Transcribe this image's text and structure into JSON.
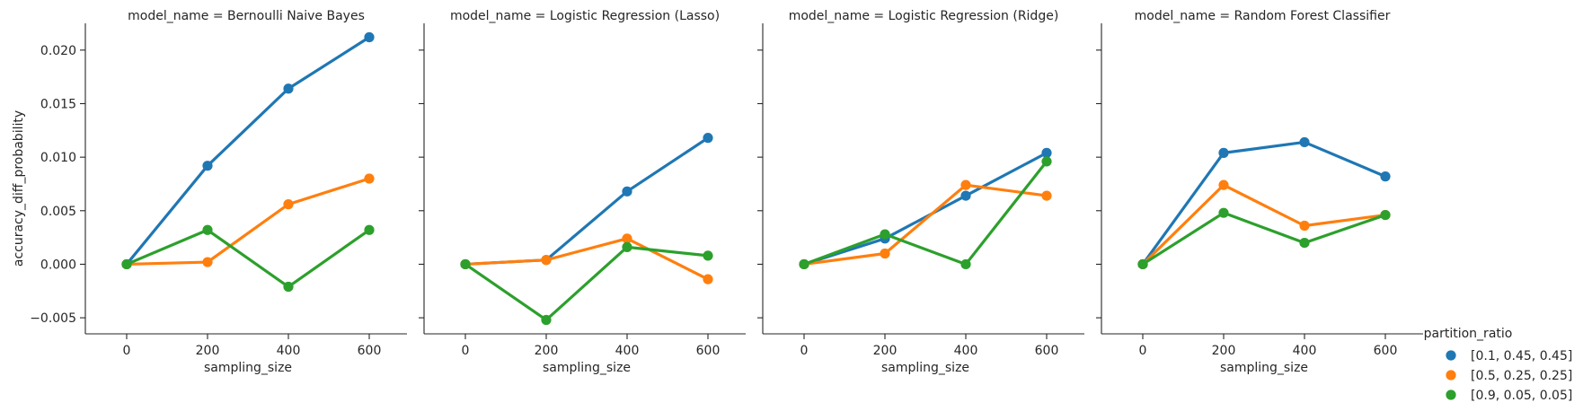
{
  "chart_data": {
    "type": "line",
    "y_label": "accuracy_diff_probability",
    "x_label": "sampling_size",
    "x_ticks": [
      0,
      200,
      400,
      600
    ],
    "y_ticks": [
      -0.005,
      0.0,
      0.005,
      0.01,
      0.015,
      0.02
    ],
    "y_tick_labels": [
      "−0.005",
      "0.000",
      "0.005",
      "0.010",
      "0.015",
      "0.020"
    ],
    "ylim": [
      -0.0065,
      0.0225
    ],
    "legend": {
      "title": "partition_ratio",
      "placement": "right",
      "entries": [
        "[0.1, 0.45, 0.45]",
        "[0.5, 0.25, 0.25]",
        "[0.9, 0.05, 0.05]"
      ]
    },
    "colors": [
      "#1f77b4",
      "#ff7f0e",
      "#2ca02c"
    ],
    "facets": [
      {
        "title": "model_name = Bernoulli Naive Bayes",
        "series": [
          {
            "name": "[0.1, 0.45, 0.45]",
            "values": [
              0.0,
              0.0092,
              0.0164,
              0.0212
            ]
          },
          {
            "name": "[0.5, 0.25, 0.25]",
            "values": [
              0.0,
              0.0002,
              0.0056,
              0.008
            ]
          },
          {
            "name": "[0.9, 0.05, 0.05]",
            "values": [
              0.0,
              0.0032,
              -0.0021,
              0.0032
            ]
          }
        ]
      },
      {
        "title": "model_name = Logistic Regression (Lasso)",
        "series": [
          {
            "name": "[0.1, 0.45, 0.45]",
            "values": [
              0.0,
              0.0004,
              0.0068,
              0.0118
            ]
          },
          {
            "name": "[0.5, 0.25, 0.25]",
            "values": [
              0.0,
              0.0004,
              0.0024,
              -0.0014
            ]
          },
          {
            "name": "[0.9, 0.05, 0.05]",
            "values": [
              0.0,
              -0.0052,
              0.0016,
              0.0008
            ]
          }
        ]
      },
      {
        "title": "model_name = Logistic Regression (Ridge)",
        "series": [
          {
            "name": "[0.1, 0.45, 0.45]",
            "values": [
              0.0,
              0.0024,
              0.0064,
              0.0104
            ]
          },
          {
            "name": "[0.5, 0.25, 0.25]",
            "values": [
              0.0,
              0.001,
              0.0074,
              0.0064
            ]
          },
          {
            "name": "[0.9, 0.05, 0.05]",
            "values": [
              0.0,
              0.0028,
              0.0,
              0.0096
            ]
          }
        ]
      },
      {
        "title": "model_name = Random Forest Classifier",
        "series": [
          {
            "name": "[0.1, 0.45, 0.45]",
            "values": [
              0.0,
              0.0104,
              0.0114,
              0.0082
            ]
          },
          {
            "name": "[0.5, 0.25, 0.25]",
            "values": [
              0.0,
              0.0074,
              0.0036,
              0.0046
            ]
          },
          {
            "name": "[0.9, 0.05, 0.05]",
            "values": [
              0.0,
              0.0048,
              0.002,
              0.0046
            ]
          }
        ]
      }
    ]
  }
}
